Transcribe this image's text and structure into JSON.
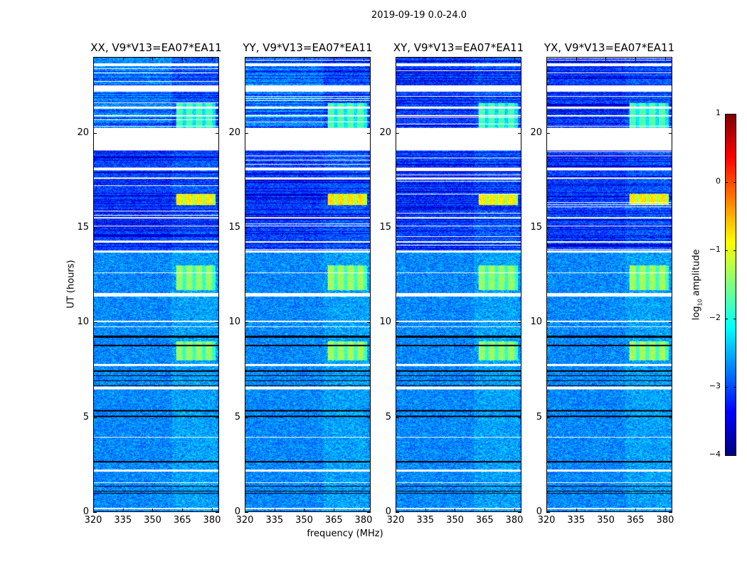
{
  "suptitle": "2019-09-19 0.0-24.0",
  "chart_data": {
    "type": "heatmap",
    "title": "2019-09-19 0.0-24.0",
    "xlabel": "frequency (MHz)",
    "ylabel": "UT (hours)",
    "xlim": [
      320,
      383.6
    ],
    "ylim": [
      0,
      24
    ],
    "xticks": [
      320,
      335,
      350,
      365,
      380
    ],
    "yticks": [
      0,
      5,
      10,
      15,
      20
    ],
    "panels": [
      {
        "title": "XX, V9*V13=EA07*EA11"
      },
      {
        "title": "YY, V9*V13=EA07*EA11"
      },
      {
        "title": "XY, V9*V13=EA07*EA11"
      },
      {
        "title": "YX, V9*V13=EA07*EA11"
      }
    ],
    "colorbar": {
      "label_main": "log",
      "label_sub": "10",
      "label_rest": " amplitude",
      "range": [
        -4,
        1
      ],
      "ticks": [
        -4,
        -3,
        -2,
        -1,
        0,
        1
      ],
      "tick_labels": [
        "−4",
        "−3",
        "−2",
        "−1",
        "0",
        "1"
      ],
      "colormap": "jet"
    },
    "baseline_log_amplitude": -2.7,
    "flagged_white_hours": [
      [
        19.1,
        20.3
      ],
      [
        23.55,
        23.7
      ],
      [
        22.2,
        22.55
      ],
      [
        21.3,
        21.4
      ],
      [
        20.9,
        20.95
      ],
      [
        18.05,
        18.2
      ],
      [
        17.6,
        17.65
      ],
      [
        15.5,
        15.55
      ],
      [
        14.2,
        14.3
      ],
      [
        13.7,
        13.8
      ],
      [
        12.6,
        12.65
      ],
      [
        11.35,
        11.55
      ],
      [
        10.0,
        10.1
      ],
      [
        9.75,
        9.8
      ],
      [
        7.7,
        7.8
      ],
      [
        6.45,
        6.6
      ],
      [
        3.9,
        3.95
      ],
      [
        2.1,
        2.2
      ],
      [
        1.5,
        1.55
      ],
      [
        0.1,
        0.2
      ]
    ],
    "flagged_black_hours": [
      [
        9.2,
        9.3
      ],
      [
        8.75,
        8.8
      ],
      [
        7.4,
        7.45
      ],
      [
        7.15,
        7.2
      ],
      [
        6.9,
        6.95
      ],
      [
        6.62,
        6.66
      ],
      [
        5.3,
        5.35
      ],
      [
        5.0,
        5.05
      ],
      [
        2.6,
        2.65
      ],
      [
        1.3,
        1.35
      ],
      [
        1.05,
        1.1
      ],
      [
        0.95,
        0.98
      ]
    ],
    "dark_regions_hours": [
      [
        13.8,
        19.1
      ],
      [
        20.3,
        24
      ]
    ],
    "rfi_regions": [
      {
        "freq_mhz": [
          362,
          382
        ],
        "hours": [
          16.2,
          16.8
        ],
        "log_amplitude": -0.9
      },
      {
        "freq_mhz": [
          362,
          382
        ],
        "hours": [
          11.7,
          13.0
        ],
        "log_amplitude": -1.5
      },
      {
        "freq_mhz": [
          362,
          382
        ],
        "hours": [
          8.0,
          9.0
        ],
        "log_amplitude": -1.5
      },
      {
        "freq_mhz": [
          362,
          382
        ],
        "hours": [
          20.3,
          21.6
        ],
        "log_amplitude": -1.9
      },
      {
        "freq_mhz": [
          360,
          383
        ],
        "hours": [
          0,
          24
        ],
        "log_amplitude": -2.2
      }
    ]
  }
}
